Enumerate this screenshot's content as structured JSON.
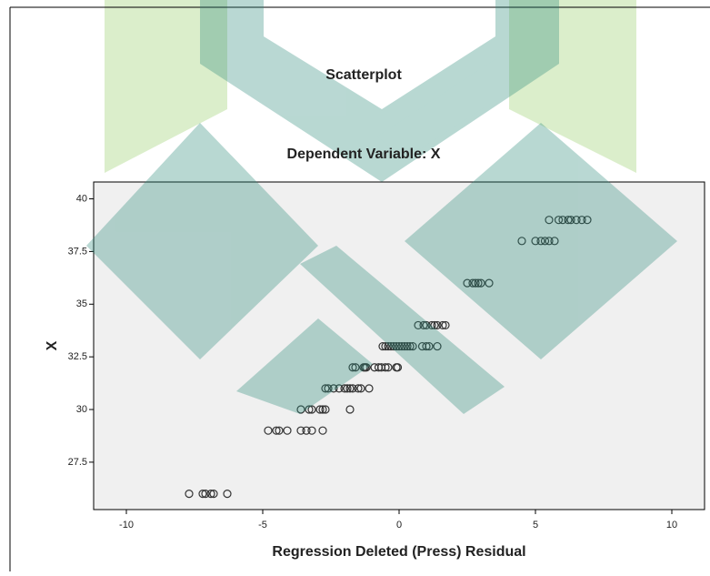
{
  "chart_data": {
    "type": "scatter",
    "title": "Scatterplot",
    "subtitle": "Dependent Variable: X",
    "x_label": "Regression Deleted (Press) Residual",
    "y_label": "X",
    "xlim": [
      -11.2,
      11.2
    ],
    "ylim": [
      25.25,
      40.8
    ],
    "xticks": [
      -10,
      -5,
      0,
      5,
      10
    ],
    "yticks": [
      27.5,
      30,
      32.5,
      35,
      37.5,
      40
    ],
    "x": [
      -7.7,
      -7.2,
      -7.1,
      -6.9,
      -6.8,
      -6.3,
      -4.8,
      -4.5,
      -4.4,
      -4.1,
      -3.6,
      -3.4,
      -3.2,
      -2.8,
      -3.6,
      -3.3,
      -3.2,
      -2.9,
      -2.8,
      -2.7,
      -1.8,
      -2.7,
      -2.6,
      -2.4,
      -2.2,
      -2.0,
      -1.9,
      -1.8,
      -1.7,
      -1.5,
      -1.4,
      -1.1,
      -1.7,
      -1.6,
      -1.3,
      -1.25,
      -1.2,
      -0.9,
      -0.75,
      -0.65,
      -0.5,
      -0.4,
      -0.1,
      -0.05,
      -0.6,
      -0.5,
      -0.4,
      -0.3,
      -0.2,
      -0.1,
      0,
      0.1,
      0.2,
      0.3,
      0.4,
      0.5,
      0.85,
      1.0,
      1.1,
      1.4,
      0.7,
      0.9,
      1.0,
      1.2,
      1.3,
      1.4,
      1.6,
      1.7,
      2.5,
      2.7,
      2.8,
      2.9,
      3.0,
      3.3,
      4.5,
      5.0,
      5.2,
      5.35,
      5.5,
      5.7,
      5.5,
      5.85,
      6.0,
      6.2,
      6.3,
      6.5,
      6.7,
      6.9
    ],
    "values": [
      26,
      26,
      26,
      26,
      26,
      26,
      29,
      29,
      29,
      29,
      29,
      29,
      29,
      29,
      30,
      30,
      30,
      30,
      30,
      30,
      30,
      31,
      31,
      31,
      31,
      31,
      31,
      31,
      31,
      31,
      31,
      31,
      32,
      32,
      32,
      32,
      32,
      32,
      32,
      32,
      32,
      32,
      32,
      32,
      33,
      33,
      33,
      33,
      33,
      33,
      33,
      33,
      33,
      33,
      33,
      33,
      33,
      33,
      33,
      33,
      34,
      34,
      34,
      34,
      34,
      34,
      34,
      34,
      36,
      36,
      36,
      36,
      36,
      36,
      38,
      38,
      38,
      38,
      38,
      38,
      39,
      39,
      39,
      39,
      39,
      39,
      39,
      39
    ],
    "background": "#f0f0f0",
    "marker_color": "#333333"
  }
}
